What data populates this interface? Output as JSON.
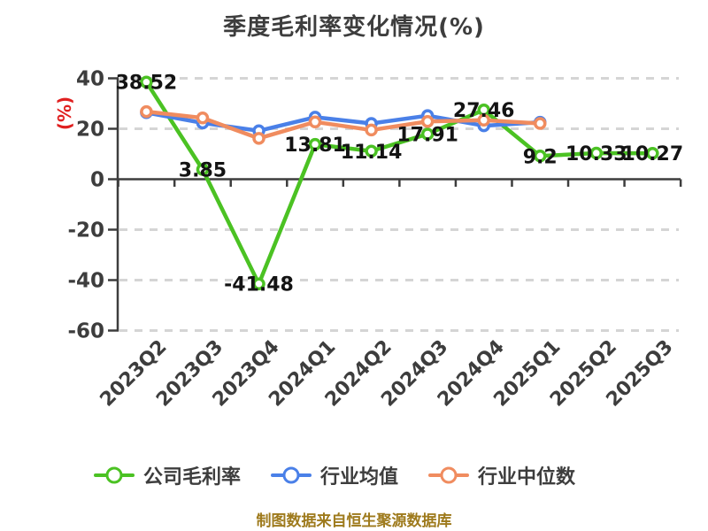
{
  "footer": {
    "text": "制图数据来自恒生聚源数据库"
  },
  "colors": {
    "axis": "#3d3d3d",
    "grid": "#d5d5d5",
    "title_text": "#3d3d3d",
    "tick_text": "#3d3d3d",
    "data_label_text": "#131313",
    "y_unit_label_red": "#e02020",
    "footer_gold": "#9e7a1c",
    "series_green": "#4bc223",
    "series_blue": "#4a80e8",
    "series_orange": "#f08c5f",
    "marker_fill": "#ffffff"
  },
  "chart_data": {
    "type": "line",
    "title": "季度毛利率变化情况(%)",
    "ylabel": "(%)",
    "xlabel": "",
    "ylim": [
      -60,
      40
    ],
    "yticks": [
      40,
      20,
      0,
      -20,
      -40,
      -60
    ],
    "grid": "dashed horizontal gridlines, x-axis drawn at y=0 with boundary ticks",
    "legend_position": "bottom",
    "categories": [
      "2023Q2",
      "2023Q3",
      "2023Q4",
      "2024Q1",
      "2024Q2",
      "2024Q3",
      "2024Q4",
      "2025Q1",
      "2025Q2",
      "2025Q3"
    ],
    "series": [
      {
        "key": "company-gross-margin",
        "name": "公司毛利率",
        "color": "#4bc223",
        "values": [
          38.52,
          3.85,
          -41.48,
          13.81,
          11.14,
          17.91,
          27.46,
          9.2,
          10.33,
          10.27
        ],
        "labels": [
          "38.52",
          "3.85",
          "-41.48",
          "13.81",
          "11.14",
          "17.91",
          "27.46",
          "9.2",
          "10.33",
          "10.27"
        ]
      },
      {
        "key": "industry-mean",
        "name": "行业均值",
        "color": "#4a80e8",
        "values": [
          26.4,
          22.3,
          19.2,
          24.6,
          22.1,
          25.2,
          21.2,
          22.6
        ]
      },
      {
        "key": "industry-median",
        "name": "行业中位数",
        "color": "#f08c5f",
        "values": [
          26.8,
          24.3,
          16.2,
          22.7,
          19.5,
          22.9,
          23.4,
          22.1
        ]
      }
    ]
  }
}
